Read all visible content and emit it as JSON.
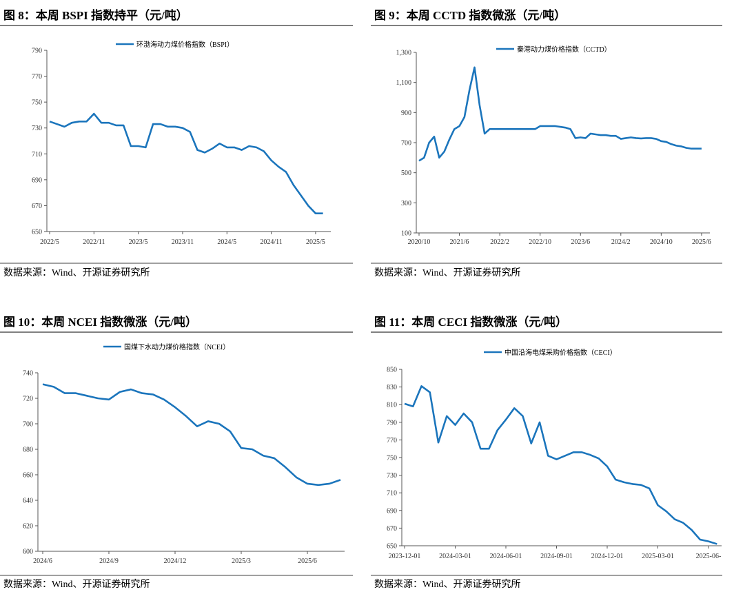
{
  "chart_data": [
    {
      "type": "line",
      "title": "图 8：本周 BSPI 指数持平（元/吨）",
      "source": "数据来源：Wind、开源证券研究所",
      "categories": [
        "2022/5",
        null,
        null,
        null,
        null,
        null,
        "2022/11",
        null,
        null,
        null,
        null,
        null,
        "2023/5",
        null,
        null,
        null,
        null,
        null,
        "2023/11",
        null,
        null,
        null,
        null,
        null,
        "2024/5",
        null,
        null,
        null,
        null,
        null,
        "2024/11",
        null,
        null,
        null,
        null,
        null,
        "2025/5",
        null
      ],
      "series": [
        {
          "name": "环渤海动力煤价格指数（BSPI）",
          "color": "#1b75bc",
          "values": [
            735,
            733,
            731,
            734,
            735,
            735,
            741,
            734,
            734,
            732,
            732,
            716,
            716,
            715,
            733,
            733,
            731,
            731,
            730,
            727,
            713,
            711,
            714,
            718,
            715,
            715,
            713,
            716,
            715,
            712,
            705,
            700,
            696,
            686,
            678,
            670,
            664,
            664
          ]
        }
      ],
      "ylim": [
        650,
        790
      ],
      "yticks": [
        650,
        670,
        690,
        710,
        730,
        750,
        770,
        790
      ]
    },
    {
      "type": "line",
      "title": "图 9：本周 CCTD 指数微涨（元/吨）",
      "source": "数据来源：Wind、开源证券研究所",
      "categories": [
        "2020/10",
        null,
        null,
        null,
        null,
        null,
        null,
        null,
        "2021/6",
        null,
        null,
        null,
        null,
        null,
        null,
        null,
        "2022/2",
        null,
        null,
        null,
        null,
        null,
        null,
        null,
        "2022/10",
        null,
        null,
        null,
        null,
        null,
        null,
        null,
        "2023/6",
        null,
        null,
        null,
        null,
        null,
        null,
        null,
        "2024/2",
        null,
        null,
        null,
        null,
        null,
        null,
        null,
        "2024/10",
        null,
        null,
        null,
        null,
        null,
        null,
        null,
        "2025/6"
      ],
      "series": [
        {
          "name": "秦港动力煤价格指数（CCTD）",
          "color": "#1b75bc",
          "values": [
            580,
            600,
            700,
            740,
            600,
            640,
            720,
            790,
            810,
            870,
            1050,
            1200,
            950,
            760,
            790,
            790,
            790,
            790,
            790,
            790,
            790,
            790,
            790,
            790,
            810,
            810,
            810,
            810,
            805,
            800,
            790,
            730,
            735,
            730,
            760,
            755,
            750,
            750,
            745,
            745,
            725,
            730,
            735,
            730,
            728,
            730,
            730,
            725,
            710,
            705,
            690,
            680,
            675,
            665,
            660,
            660,
            660
          ]
        }
      ],
      "ylim": [
        100,
        1300
      ],
      "yticks": [
        100,
        300,
        500,
        700,
        900,
        {
          "value": 1100,
          "label": "1,100"
        },
        {
          "value": 1300,
          "label": "1,300"
        }
      ]
    },
    {
      "type": "line",
      "title": "图 10：本周 NCEI 指数微涨（元/吨）",
      "source": "数据来源：Wind、开源证券研究所",
      "categories": [
        "2024/6",
        null,
        null,
        null,
        null,
        null,
        "2024/9",
        null,
        null,
        null,
        null,
        null,
        "2024/12",
        null,
        null,
        null,
        null,
        null,
        "2025/3",
        null,
        null,
        null,
        null,
        null,
        "2025/6",
        null,
        null,
        null
      ],
      "series": [
        {
          "name": "国煤下水动力煤价格指数（NCEI）",
          "color": "#1b75bc",
          "values": [
            731,
            729,
            724,
            724,
            722,
            720,
            719,
            725,
            727,
            724,
            723,
            719,
            713,
            706,
            698,
            702,
            700,
            694,
            681,
            680,
            675,
            673,
            666,
            658,
            653,
            652,
            653,
            656
          ]
        }
      ],
      "ylim": [
        600,
        740
      ],
      "yticks": [
        600,
        620,
        640,
        660,
        680,
        700,
        720,
        740
      ]
    },
    {
      "type": "line",
      "title": "图 11：本周 CECI 指数微涨（元/吨）",
      "source": "数据来源：Wind、开源证券研究所",
      "categories": [
        "2023-12-01",
        null,
        null,
        null,
        null,
        null,
        "2024-03-01",
        null,
        null,
        null,
        null,
        null,
        "2024-06-01",
        null,
        null,
        null,
        null,
        null,
        "2024-09-01",
        null,
        null,
        null,
        null,
        null,
        "2024-12-01",
        null,
        null,
        null,
        null,
        null,
        "2025-03-01",
        null,
        null,
        null,
        null,
        null,
        "2025-06-",
        null
      ],
      "series": [
        {
          "name": "中国沿海电煤采购价格指数（CECI）",
          "color": "#1b75bc",
          "values": [
            811,
            808,
            831,
            824,
            767,
            797,
            787,
            800,
            790,
            760,
            760,
            781,
            793,
            806,
            797,
            766,
            790,
            752,
            748,
            752,
            756,
            756,
            753,
            749,
            740,
            725,
            722,
            720,
            719,
            715,
            696,
            689,
            680,
            676,
            668,
            657,
            655,
            652
          ]
        }
      ],
      "ylim": [
        650,
        850
      ],
      "yticks": [
        650,
        670,
        690,
        710,
        730,
        750,
        770,
        790,
        810,
        830,
        850
      ]
    }
  ]
}
